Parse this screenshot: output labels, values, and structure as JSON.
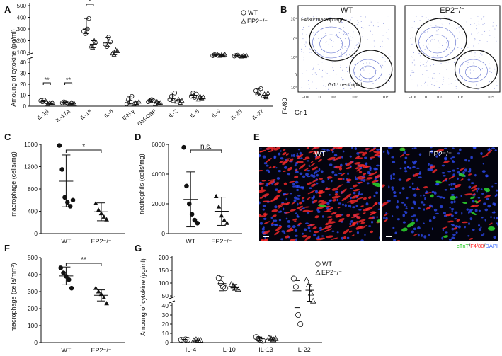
{
  "panel_letters": [
    "A",
    "B",
    "C",
    "D",
    "E",
    "F",
    "G"
  ],
  "chart_data": [
    {
      "panel": "A",
      "type": "scatter",
      "ylabel": "Amoung of cytokine (pg/ml)",
      "categories": [
        "IL-1β",
        "IL-17A",
        "IL-18",
        "IL-6",
        "IFN-γ",
        "GM-CSF",
        "IL-2",
        "IL-5",
        "IL-9",
        "IL-23",
        "IL-27"
      ],
      "y_ticks_lower": [
        "0",
        "10",
        "20",
        "30",
        "40"
      ],
      "y_ticks_upper": [
        "100",
        "200",
        "300",
        "400",
        "500"
      ],
      "y_scale": "broken",
      "legend": [
        "WT",
        "EP2⁻/⁻"
      ],
      "legend_placement": "top-right",
      "series": [
        {
          "name": "WT",
          "marker": "circle",
          "means": [
            4.5,
            3.5,
            300,
            180,
            5,
            5,
            7,
            10,
            78,
            72,
            12
          ],
          "values": [
            [
              5,
              4,
              5.5,
              4
            ],
            [
              3,
              4,
              3.5,
              3
            ],
            [
              280,
              260,
              300,
              390
            ],
            [
              170,
              150,
              230,
              190
            ],
            [
              2,
              6,
              4,
              9
            ],
            [
              4,
              5,
              6,
              5
            ],
            [
              6,
              9,
              5,
              12
            ],
            [
              9,
              12,
              8,
              11
            ],
            [
              72,
              80,
              85,
              76
            ],
            [
              68,
              74,
              76,
              70
            ],
            [
              14,
              11,
              12,
              16
            ]
          ]
        },
        {
          "name": "EP2⁻/⁻",
          "marker": "triangle",
          "means": [
            2.5,
            2.5,
            170,
            100,
            3,
            3,
            5,
            7,
            75,
            68,
            10
          ],
          "values": [
            [
              2,
              3,
              2.5,
              3
            ],
            [
              2,
              3,
              2.5,
              2
            ],
            [
              150,
              140,
              200,
              190
            ],
            [
              90,
              80,
              120,
              110
            ],
            [
              2,
              3,
              1.5,
              4
            ],
            [
              2,
              4,
              3,
              3
            ],
            [
              4,
              6,
              3,
              5
            ],
            [
              6,
              9,
              7,
              8
            ],
            [
              70,
              78,
              72,
              80
            ],
            [
              64,
              70,
              66,
              72
            ],
            [
              9,
              11,
              8,
              12
            ]
          ]
        }
      ],
      "significance": [
        {
          "category": "IL-1β",
          "label": "**"
        },
        {
          "category": "IL-17A",
          "label": "**"
        },
        {
          "category": "IL-18",
          "label": "*"
        }
      ]
    },
    {
      "panel": "C",
      "type": "scatter",
      "ylabel": "macrophage (cells/mg)",
      "categories": [
        "WT",
        "EP2⁻/⁻"
      ],
      "ylim": [
        0,
        1600
      ],
      "y_ticks": [
        "0",
        "400",
        "800",
        "1200",
        "1600"
      ],
      "series": [
        {
          "name": "WT",
          "marker": "circle-filled",
          "mean": 940,
          "sd_low": 480,
          "sd_high": 1410,
          "values": [
            1580,
            1150,
            650,
            560,
            490,
            600
          ]
        },
        {
          "name": "EP2⁻/⁻",
          "marker": "triangle-filled",
          "mean": 390,
          "sd_low": 230,
          "sd_high": 550,
          "values": [
            540,
            420,
            360,
            300,
            250
          ]
        }
      ],
      "significance": "*"
    },
    {
      "panel": "D",
      "type": "scatter",
      "ylabel": "neutrophils (cells/mg)",
      "categories": [
        "WT",
        "EP2⁻/⁻"
      ],
      "ylim": [
        0,
        6000
      ],
      "y_ticks": [
        "0",
        "2000",
        "4000",
        "6000"
      ],
      "series": [
        {
          "name": "WT",
          "marker": "circle-filled",
          "mean": 2300,
          "sd_low": 450,
          "sd_high": 4150,
          "values": [
            5800,
            3200,
            2000,
            1300,
            900,
            700
          ]
        },
        {
          "name": "EP2⁻/⁻",
          "marker": "triangle-filled",
          "mean": 1500,
          "sd_low": 550,
          "sd_high": 2450,
          "values": [
            2500,
            1800,
            1200,
            900,
            700
          ]
        }
      ],
      "significance": "n.s."
    },
    {
      "panel": "F",
      "type": "scatter",
      "ylabel": "macrophage (cells/mm²)",
      "categories": [
        "WT",
        "EP2⁻/⁻"
      ],
      "ylim": [
        0,
        500
      ],
      "y_ticks": [
        "0",
        "100",
        "200",
        "300",
        "400",
        "500"
      ],
      "series": [
        {
          "name": "WT",
          "marker": "circle-filled",
          "mean": 392,
          "sd_low": 340,
          "sd_high": 445,
          "values": [
            440,
            410,
            390,
            370,
            320
          ]
        },
        {
          "name": "EP2⁻/⁻",
          "marker": "triangle-filled",
          "mean": 278,
          "sd_low": 245,
          "sd_high": 310,
          "values": [
            320,
            300,
            285,
            265,
            230
          ]
        }
      ],
      "significance": "**"
    },
    {
      "panel": "G",
      "type": "scatter",
      "ylabel": "Amoung of cytokine (pg/ml)",
      "categories": [
        "IL-4",
        "IL-10",
        "IL-13",
        "IL-22"
      ],
      "y_scale": "broken",
      "y_ticks_lower": [
        "0",
        "10",
        "20",
        "30",
        "40"
      ],
      "y_ticks_upper": [
        "50",
        "100",
        "150",
        "200"
      ],
      "legend": [
        "WT",
        "EP2⁻/⁻"
      ],
      "legend_placement": "top-right",
      "series": [
        {
          "name": "WT",
          "marker": "circle",
          "means": [
            3,
            98,
            4,
            70
          ],
          "sd_low": [
            2.5,
            70,
            2,
            38
          ],
          "sd_high": [
            3.5,
            125,
            6,
            110
          ],
          "values": [
            [
              3,
              2.5,
              3.5,
              3
            ],
            [
              120,
              100,
              85,
              80
            ],
            [
              6,
              4,
              3,
              2
            ],
            [
              118,
              85,
              30,
              20
            ]
          ]
        },
        {
          "name": "EP2⁻/⁻",
          "marker": "triangle",
          "means": [
            2.5,
            82,
            3.8,
            72
          ],
          "sd_low": [
            2,
            72,
            2.5,
            45
          ],
          "sd_high": [
            3,
            95,
            5.5,
            95
          ],
          "values": [
            [
              2,
              3,
              2.5,
              2.5
            ],
            [
              95,
              88,
              80,
              75
            ],
            [
              5,
              4,
              3,
              4
            ],
            [
              112,
              92,
              60,
              45
            ]
          ]
        }
      ]
    }
  ],
  "flow": {
    "ylabel": "F4/80",
    "xlabel": "Gr-1",
    "gate_macrophage": "F4/80⁺macrophage",
    "gate_neutrophil": "Gr1⁺ neutrophil",
    "panels": [
      {
        "title": "WT"
      },
      {
        "title": "EP2⁻/⁻"
      }
    ],
    "y_ticks": [
      "10⁴",
      "10³",
      "10²",
      "0",
      "-10²"
    ],
    "x_ticks": [
      "-10²",
      "0",
      "10²",
      "10³",
      "10⁴"
    ]
  },
  "images": {
    "panels": [
      {
        "title": "WT"
      },
      {
        "title": "EP2⁻/⁻"
      }
    ],
    "stain": [
      {
        "label": "cTnT",
        "color": "#22cc22"
      },
      {
        "label": "F4/80",
        "color": "#ff2222"
      },
      {
        "label": "DAPI",
        "color": "#3366ff"
      }
    ],
    "separator": "/"
  }
}
